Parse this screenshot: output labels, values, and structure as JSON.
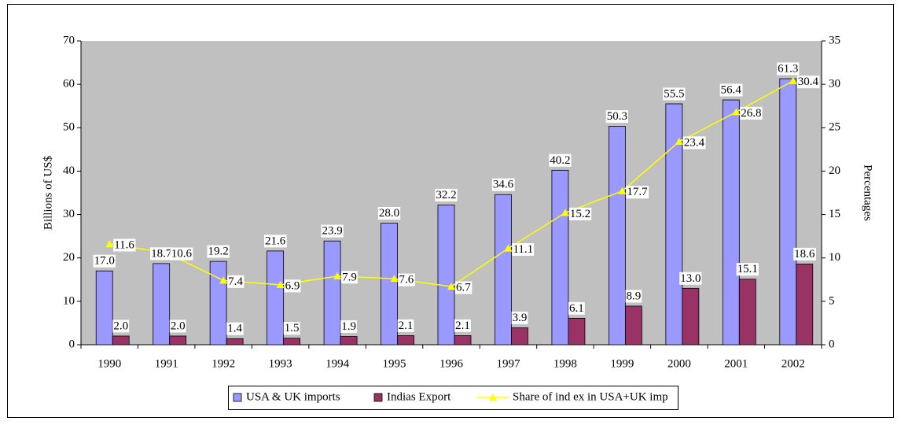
{
  "chart_data": {
    "type": "bar",
    "categories": [
      "1990",
      "1991",
      "1992",
      "1993",
      "1994",
      "1995",
      "1996",
      "1997",
      "1998",
      "1999",
      "2000",
      "2001",
      "2002"
    ],
    "ylabel": "Billions of US$",
    "y2label": "Percentages",
    "ylim": [
      0,
      70
    ],
    "yticks": [
      0,
      10,
      20,
      30,
      40,
      50,
      60,
      70
    ],
    "y2lim": [
      0,
      35
    ],
    "y2ticks": [
      0,
      5,
      10,
      15,
      20,
      25,
      30,
      35
    ],
    "grid": false,
    "legend": "bottom",
    "series": [
      {
        "name": "USA & UK imports",
        "color": "#9999ff",
        "type": "bar",
        "values": [
          17.0,
          18.7,
          19.2,
          21.6,
          23.9,
          28.0,
          32.2,
          34.6,
          40.2,
          50.3,
          55.5,
          56.4,
          61.3
        ],
        "value_labels": [
          "17.0",
          "18.7",
          "19.2",
          "21.6",
          "23.9",
          "28.0",
          "32.2",
          "34.6",
          "40.2",
          "50.3",
          "55.5",
          "56.4",
          "61.3"
        ]
      },
      {
        "name": "Indias Export",
        "color": "#993366",
        "type": "bar",
        "values": [
          2.0,
          2.0,
          1.4,
          1.5,
          1.9,
          2.1,
          2.1,
          3.9,
          6.1,
          8.9,
          13.0,
          15.1,
          18.6
        ],
        "value_labels": [
          "2.0",
          "2.0",
          "1.4",
          "1.5",
          "1.9",
          "2.1",
          "2.1",
          "3.9",
          "6.1",
          "8.9",
          "13.0",
          "15.1",
          "18.6"
        ]
      },
      {
        "name": "Share of ind ex in USA+UK imp",
        "color": "#ffff00",
        "type": "line",
        "axis": "y2",
        "values": [
          11.6,
          10.6,
          7.4,
          6.9,
          7.9,
          7.6,
          6.7,
          11.1,
          15.2,
          17.7,
          23.4,
          26.8,
          30.4
        ],
        "value_labels": [
          "11.6",
          "10.6",
          "7.4",
          "6.9",
          "7.9",
          "7.6",
          "6.7",
          "11.1",
          "15.2",
          "17.7",
          "23.4",
          "26.8",
          "30.4"
        ]
      }
    ]
  }
}
